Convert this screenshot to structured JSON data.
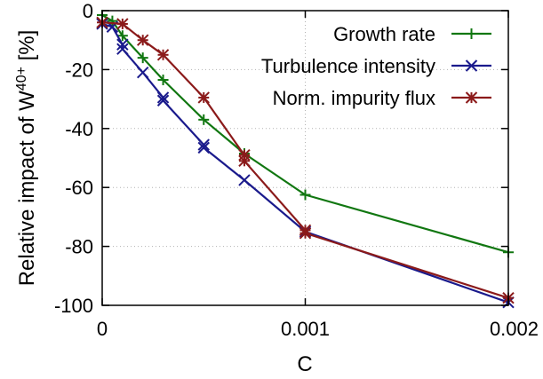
{
  "chart_data": {
    "type": "line",
    "xlabel": "C",
    "ylabel": "Relative impact of W",
    "ylabel_sup": "40+",
    "ylabel_unit": " [%]",
    "xlim": [
      0,
      0.002
    ],
    "ylim": [
      -100,
      0
    ],
    "xticks": [
      0,
      0.001,
      0.002
    ],
    "xtick_labels": [
      "0",
      "0.001",
      "0.002"
    ],
    "yticks": [
      0,
      -20,
      -40,
      -60,
      -80,
      -100
    ],
    "ytick_labels": [
      "0",
      "-20",
      "-40",
      "-60",
      "-80",
      "-100"
    ],
    "grid": true,
    "legend_position": "top-right",
    "series": [
      {
        "name": "Growth rate",
        "color": "#117711",
        "marker": "plus",
        "x": [
          0,
          5e-05,
          0.0001,
          0.0002,
          0.0003,
          0.0005,
          0.0007,
          0.001,
          0.002
        ],
        "y": [
          -1.5,
          -3.5,
          -8.5,
          -16,
          -23.5,
          -37,
          -48.5,
          -62.5,
          -82
        ]
      },
      {
        "name": "Turbulence intensity",
        "color": "#1a1a8c",
        "marker": "cross",
        "x": [
          0,
          5e-05,
          0.0001,
          0.0001,
          0.0002,
          0.0003,
          0.0003,
          0.0005,
          0.0005,
          0.0007,
          0.001,
          0.002
        ],
        "y": [
          -4.5,
          -5.5,
          -11.5,
          -13,
          -21,
          -29.5,
          -30.5,
          -45.5,
          -46.5,
          -57.5,
          -75,
          -99
        ]
      },
      {
        "name": "Norm. impurity flux",
        "color": "#8b1a1a",
        "marker": "star",
        "x": [
          0,
          0.0001,
          0.0002,
          0.0003,
          0.0005,
          0.0007,
          0.0007,
          0.001,
          0.001,
          0.002
        ],
        "y": [
          -4,
          -4.5,
          -10,
          -15,
          -29.5,
          -49,
          -51,
          -74.5,
          -75.5,
          -97.5
        ]
      }
    ]
  }
}
